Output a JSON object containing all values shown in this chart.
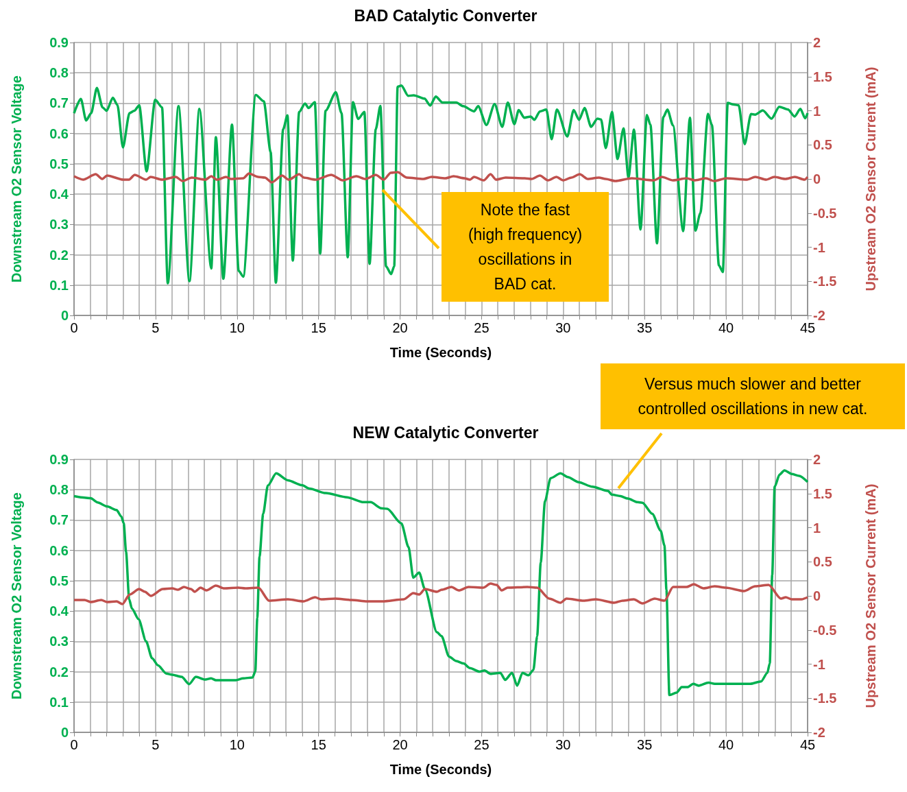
{
  "chart_data": [
    {
      "type": "line",
      "title": "BAD Catalytic Converter",
      "xlabel": "Time (Seconds)",
      "ylabel": "Downstream O2 Sensor Voltage",
      "y2label": "Upstream O2 Sensor Current (mA)",
      "grid": true,
      "marker": "none",
      "line_style": "solid",
      "xlim": [
        0,
        45
      ],
      "xticks": [
        0,
        {
          "value": 1,
          "label": null
        },
        {
          "value": 2,
          "label": null
        },
        {
          "value": 3,
          "label": null
        },
        {
          "value": 4,
          "label": null
        },
        5,
        {
          "value": 6,
          "label": null
        },
        {
          "value": 7,
          "label": null
        },
        {
          "value": 8,
          "label": null
        },
        {
          "value": 9,
          "label": null
        },
        10,
        {
          "value": 11,
          "label": null
        },
        {
          "value": 12,
          "label": null
        },
        {
          "value": 13,
          "label": null
        },
        {
          "value": 14,
          "label": null
        },
        15,
        {
          "value": 16,
          "label": null
        },
        {
          "value": 17,
          "label": null
        },
        {
          "value": 18,
          "label": null
        },
        {
          "value": 19,
          "label": null
        },
        20,
        {
          "value": 21,
          "label": null
        },
        {
          "value": 22,
          "label": null
        },
        {
          "value": 23,
          "label": null
        },
        {
          "value": 24,
          "label": null
        },
        25,
        {
          "value": 26,
          "label": null
        },
        {
          "value": 27,
          "label": null
        },
        {
          "value": 28,
          "label": null
        },
        {
          "value": 29,
          "label": null
        },
        30,
        {
          "value": 31,
          "label": null
        },
        {
          "value": 32,
          "label": null
        },
        {
          "value": 33,
          "label": null
        },
        {
          "value": 34,
          "label": null
        },
        35,
        {
          "value": 36,
          "label": null
        },
        {
          "value": 37,
          "label": null
        },
        {
          "value": 38,
          "label": null
        },
        {
          "value": 39,
          "label": null
        },
        40,
        {
          "value": 41,
          "label": null
        },
        {
          "value": 42,
          "label": null
        },
        {
          "value": 43,
          "label": null
        },
        {
          "value": 44,
          "label": null
        },
        45
      ],
      "ylim": [
        0,
        0.9
      ],
      "yticks": [
        0,
        0.1,
        0.2,
        0.3,
        0.4,
        0.5,
        0.6,
        0.7,
        0.8,
        0.9
      ],
      "y2lim": [
        -2,
        2
      ],
      "y2ticks": [
        -2,
        -1.5,
        -1,
        -0.5,
        0,
        0.5,
        1,
        1.5,
        2
      ],
      "annotations": [
        "Note the fast (high frequency) oscillations in BAD cat."
      ],
      "series": [
        {
          "color": "#00b050",
          "x": [
            0,
            0.42,
            0.74,
            1.05,
            1.4,
            1.75,
            2.0,
            2.38,
            2.66,
            3.0,
            3.4,
            3.7,
            4.0,
            4.45,
            4.98,
            5.4,
            5.75,
            6.41,
            7.08,
            7.69,
            8.42,
            8.7,
            9.16,
            9.69,
            10.1,
            10.38,
            11.15,
            11.64,
            12.06,
            12.38,
            12.83,
            13.09,
            13.42,
            13.81,
            14.17,
            14.38,
            14.77,
            15.1,
            15.43,
            16.06,
            16.41,
            16.79,
            17.11,
            17.43,
            17.81,
            18.13,
            18.51,
            18.79,
            19.14,
            19.45,
            19.64,
            19.85,
            20.08,
            20.5,
            20.84,
            21.5,
            21.85,
            22.19,
            22.6,
            23.45,
            23.87,
            24.54,
            24.79,
            25.3,
            25.8,
            26.27,
            26.61,
            27.01,
            27.28,
            27.62,
            28.02,
            28.24,
            28.58,
            28.97,
            29.3,
            29.62,
            30.26,
            30.65,
            30.98,
            31.32,
            31.72,
            32.11,
            32.33,
            32.62,
            33.0,
            33.34,
            33.71,
            34.01,
            34.35,
            34.75,
            35.14,
            35.36,
            35.76,
            36.15,
            36.4,
            36.74,
            37.37,
            37.78,
            38.12,
            38.42,
            38.89,
            39.13,
            39.56,
            39.8,
            40.1,
            40.43,
            40.77,
            41.14,
            41.53,
            41.78,
            42.25,
            42.79,
            43.26,
            43.8,
            44.2,
            44.56,
            44.85,
            45
          ],
          "values": [
            0.667,
            0.714,
            0.643,
            0.667,
            0.75,
            0.686,
            0.675,
            0.718,
            0.694,
            0.554,
            0.667,
            0.675,
            0.693,
            0.475,
            0.711,
            0.686,
            0.106,
            0.69,
            0.113,
            0.681,
            0.155,
            0.588,
            0.121,
            0.629,
            0.147,
            0.128,
            0.727,
            0.706,
            0.539,
            0.108,
            0.614,
            0.66,
            0.181,
            0.671,
            0.699,
            0.684,
            0.703,
            0.204,
            0.675,
            0.736,
            0.667,
            0.192,
            0.703,
            0.648,
            0.671,
            0.17,
            0.614,
            0.691,
            0.162,
            0.136,
            0.162,
            0.754,
            0.758,
            0.724,
            0.726,
            0.715,
            0.692,
            0.722,
            0.702,
            0.702,
            0.69,
            0.673,
            0.69,
            0.628,
            0.697,
            0.622,
            0.702,
            0.631,
            0.677,
            0.652,
            0.656,
            0.645,
            0.673,
            0.679,
            0.581,
            0.679,
            0.59,
            0.677,
            0.645,
            0.684,
            0.622,
            0.649,
            0.646,
            0.552,
            0.671,
            0.516,
            0.617,
            0.455,
            0.613,
            0.283,
            0.661,
            0.628,
            0.238,
            0.654,
            0.679,
            0.627,
            0.278,
            0.652,
            0.28,
            0.337,
            0.665,
            0.628,
            0.165,
            0.143,
            0.701,
            0.696,
            0.693,
            0.565,
            0.664,
            0.662,
            0.676,
            0.649,
            0.688,
            0.679,
            0.656,
            0.681,
            0.65,
            0.667
          ]
        },
        {
          "color": "#c0504d",
          "axis": "y2",
          "x": [
            0,
            0.56,
            1.33,
            1.73,
            2.03,
            3.02,
            3.37,
            3.72,
            4.42,
            4.7,
            5.4,
            6.24,
            6.66,
            7.22,
            8.06,
            8.42,
            8.77,
            9.33,
            9.61,
            10.38,
            10.73,
            11.29,
            11.71,
            12.13,
            12.76,
            13.18,
            13.81,
            14.1,
            14.8,
            15.78,
            16.48,
            17.32,
            17.88,
            18.51,
            19.0,
            19.43,
            19.85,
            20.42,
            21.43,
            21.93,
            22.78,
            23.28,
            23.95,
            24.29,
            24.54,
            25.13,
            25.55,
            25.89,
            26.48,
            27.65,
            28.07,
            28.58,
            29.08,
            29.59,
            30.01,
            30.51,
            31.02,
            31.52,
            32.2,
            32.62,
            33.2,
            34.21,
            35.56,
            36.06,
            36.74,
            37.58,
            38.08,
            38.76,
            39.26,
            40.02,
            41.28,
            41.79,
            42.46,
            42.96,
            43.63,
            44.22,
            44.81,
            45
          ],
          "values": [
            0.04,
            -0.01,
            0.07,
            0,
            0.05,
            -0.01,
            -0.01,
            0.06,
            -0.01,
            0.03,
            -0.01,
            0.03,
            -0.03,
            0.02,
            -0.01,
            0.04,
            -0.01,
            0.03,
            0,
            0.01,
            0.08,
            0.03,
            0.02,
            -0.05,
            0.05,
            -0.01,
            0.07,
            0.02,
            -0.01,
            0.06,
            -0.02,
            0.04,
            0,
            0.06,
            -0.01,
            0.09,
            0.1,
            0.02,
            0,
            0.03,
            0.01,
            0.04,
            0.01,
            -0.01,
            0.03,
            -0.02,
            0.07,
            -0.01,
            0.02,
            0.01,
            0,
            0.05,
            -0.02,
            0.03,
            -0.02,
            0.02,
            0.07,
            0,
            0.02,
            0,
            -0.03,
            0.01,
            -0.02,
            0.03,
            -0.02,
            0.01,
            -0.02,
            0.01,
            -0.03,
            0.01,
            -0.01,
            0.03,
            -0.01,
            0.03,
            0,
            0.03,
            -0.01,
            0.03
          ]
        }
      ]
    },
    {
      "type": "line",
      "title": "NEW Catalytic Converter",
      "xlabel": "Time (Seconds)",
      "ylabel": "Downstream O2 Sensor Voltage",
      "y2label": "Upstream O2 Sensor Current (mA)",
      "grid": true,
      "marker": "none",
      "line_style": "solid",
      "xlim": [
        0,
        45
      ],
      "xticks": [
        0,
        {
          "value": 1,
          "label": null
        },
        {
          "value": 2,
          "label": null
        },
        {
          "value": 3,
          "label": null
        },
        {
          "value": 4,
          "label": null
        },
        5,
        {
          "value": 6,
          "label": null
        },
        {
          "value": 7,
          "label": null
        },
        {
          "value": 8,
          "label": null
        },
        {
          "value": 9,
          "label": null
        },
        10,
        {
          "value": 11,
          "label": null
        },
        {
          "value": 12,
          "label": null
        },
        {
          "value": 13,
          "label": null
        },
        {
          "value": 14,
          "label": null
        },
        15,
        {
          "value": 16,
          "label": null
        },
        {
          "value": 17,
          "label": null
        },
        {
          "value": 18,
          "label": null
        },
        {
          "value": 19,
          "label": null
        },
        20,
        {
          "value": 21,
          "label": null
        },
        {
          "value": 22,
          "label": null
        },
        {
          "value": 23,
          "label": null
        },
        {
          "value": 24,
          "label": null
        },
        25,
        {
          "value": 26,
          "label": null
        },
        {
          "value": 27,
          "label": null
        },
        {
          "value": 28,
          "label": null
        },
        {
          "value": 29,
          "label": null
        },
        30,
        {
          "value": 31,
          "label": null
        },
        {
          "value": 32,
          "label": null
        },
        {
          "value": 33,
          "label": null
        },
        {
          "value": 34,
          "label": null
        },
        35,
        {
          "value": 36,
          "label": null
        },
        {
          "value": 37,
          "label": null
        },
        {
          "value": 38,
          "label": null
        },
        {
          "value": 39,
          "label": null
        },
        40,
        {
          "value": 41,
          "label": null
        },
        {
          "value": 42,
          "label": null
        },
        {
          "value": 43,
          "label": null
        },
        {
          "value": 44,
          "label": null
        },
        45
      ],
      "ylim": [
        0,
        0.9
      ],
      "yticks": [
        0,
        0.1,
        0.2,
        0.3,
        0.4,
        0.5,
        0.6,
        0.7,
        0.8,
        0.9
      ],
      "y2lim": [
        -2,
        2
      ],
      "y2ticks": [
        -2,
        -1.5,
        -1,
        -0.5,
        0,
        0.5,
        1,
        1.5,
        2
      ],
      "annotations": [
        "Versus much slower and better controlled oscillations in new cat."
      ],
      "series": [
        {
          "color": "#00b050",
          "x": [
            0,
            0.65,
            1.02,
            1.45,
            2.03,
            2.61,
            2.9,
            3.05,
            3.19,
            3.38,
            3.55,
            3.96,
            4.42,
            4.79,
            5.15,
            5.66,
            6.02,
            6.6,
            7.06,
            7.47,
            8.05,
            8.41,
            8.7,
            9.93,
            10.37,
            10.95,
            11.12,
            11.24,
            11.38,
            11.6,
            11.89,
            12.4,
            13.12,
            13.99,
            14.43,
            15.44,
            16.75,
            17.76,
            18.2,
            18.85,
            19.21,
            20.08,
            20.52,
            20.81,
            21.17,
            21.53,
            22.26,
            22.55,
            23.0,
            23.45,
            23.9,
            24.28,
            24.88,
            25.18,
            25.55,
            26.15,
            26.45,
            26.87,
            27.18,
            27.51,
            27.88,
            28.18,
            28.41,
            28.63,
            28.89,
            29.23,
            29.84,
            30.29,
            30.96,
            31.79,
            32.76,
            32.99,
            33.52,
            33.97,
            34.57,
            34.87,
            35.47,
            35.99,
            36.22,
            36.34,
            36.52,
            36.97,
            37.27,
            37.64,
            37.99,
            38.32,
            38.92,
            39.3,
            41.48,
            42.15,
            42.53,
            42.68,
            42.83,
            42.98,
            43.28,
            43.58,
            44.03,
            44.48,
            45
          ],
          "values": [
            0.779,
            0.774,
            0.772,
            0.758,
            0.745,
            0.733,
            0.712,
            0.689,
            0.596,
            0.439,
            0.408,
            0.373,
            0.3,
            0.244,
            0.221,
            0.194,
            0.19,
            0.183,
            0.159,
            0.183,
            0.174,
            0.178,
            0.172,
            0.172,
            0.178,
            0.181,
            0.201,
            0.377,
            0.58,
            0.72,
            0.814,
            0.854,
            0.831,
            0.815,
            0.804,
            0.789,
            0.775,
            0.759,
            0.759,
            0.739,
            0.737,
            0.689,
            0.611,
            0.51,
            0.527,
            0.471,
            0.33,
            0.317,
            0.25,
            0.235,
            0.227,
            0.212,
            0.2,
            0.204,
            0.193,
            0.196,
            0.173,
            0.196,
            0.154,
            0.196,
            0.188,
            0.206,
            0.317,
            0.56,
            0.762,
            0.838,
            0.854,
            0.842,
            0.825,
            0.81,
            0.796,
            0.784,
            0.779,
            0.771,
            0.759,
            0.757,
            0.721,
            0.665,
            0.616,
            0.47,
            0.123,
            0.131,
            0.149,
            0.149,
            0.16,
            0.154,
            0.164,
            0.16,
            0.16,
            0.168,
            0.196,
            0.228,
            0.519,
            0.81,
            0.85,
            0.864,
            0.852,
            0.846,
            0.826
          ]
        },
        {
          "color": "#c0504d",
          "axis": "y2",
          "x": [
            0,
            0.65,
            1.02,
            1.67,
            2.03,
            2.61,
            2.97,
            3.41,
            3.99,
            4.35,
            4.71,
            5.44,
            6.02,
            6.38,
            6.74,
            7.18,
            7.4,
            7.76,
            8.12,
            8.7,
            9.21,
            10.08,
            10.51,
            11.31,
            11.96,
            13.12,
            14.07,
            14.79,
            15.15,
            16.02,
            17.04,
            17.98,
            18.92,
            20.23,
            20.81,
            21.17,
            21.53,
            22.26,
            22.55,
            23.15,
            23.6,
            24.2,
            25.1,
            25.55,
            25.93,
            26.23,
            26.6,
            27.81,
            28.41,
            29.16,
            29.84,
            30.21,
            31.26,
            32.01,
            33.14,
            33.66,
            34.34,
            34.87,
            35.62,
            36.22,
            36.75,
            37.57,
            38.02,
            38.62,
            39.3,
            39.98,
            41.1,
            41.78,
            42.61,
            43.36,
            43.66,
            44.03,
            44.63,
            45
          ],
          "values": [
            -0.06,
            -0.06,
            -0.09,
            -0.06,
            -0.09,
            -0.08,
            -0.12,
            0.02,
            0.1,
            0.06,
            0,
            0.1,
            0.11,
            0.09,
            0.13,
            0.1,
            0.06,
            0.12,
            0.08,
            0.15,
            0.11,
            0.12,
            0.11,
            0.12,
            -0.07,
            -0.05,
            -0.08,
            -0.02,
            -0.05,
            -0.04,
            -0.06,
            -0.08,
            -0.08,
            -0.05,
            0.04,
            0.02,
            0.1,
            0.06,
            0.09,
            0.13,
            0.08,
            0.13,
            0.12,
            0.18,
            0.16,
            0.08,
            0.12,
            0.13,
            0.12,
            -0.04,
            -0.1,
            -0.04,
            -0.07,
            -0.05,
            -0.1,
            -0.07,
            -0.05,
            -0.11,
            -0.04,
            -0.07,
            0.13,
            0.13,
            0.17,
            0.11,
            0.14,
            0.12,
            0.07,
            0.14,
            0.16,
            -0.04,
            -0.02,
            -0.05,
            -0.05,
            -0.02
          ]
        }
      ]
    }
  ]
}
